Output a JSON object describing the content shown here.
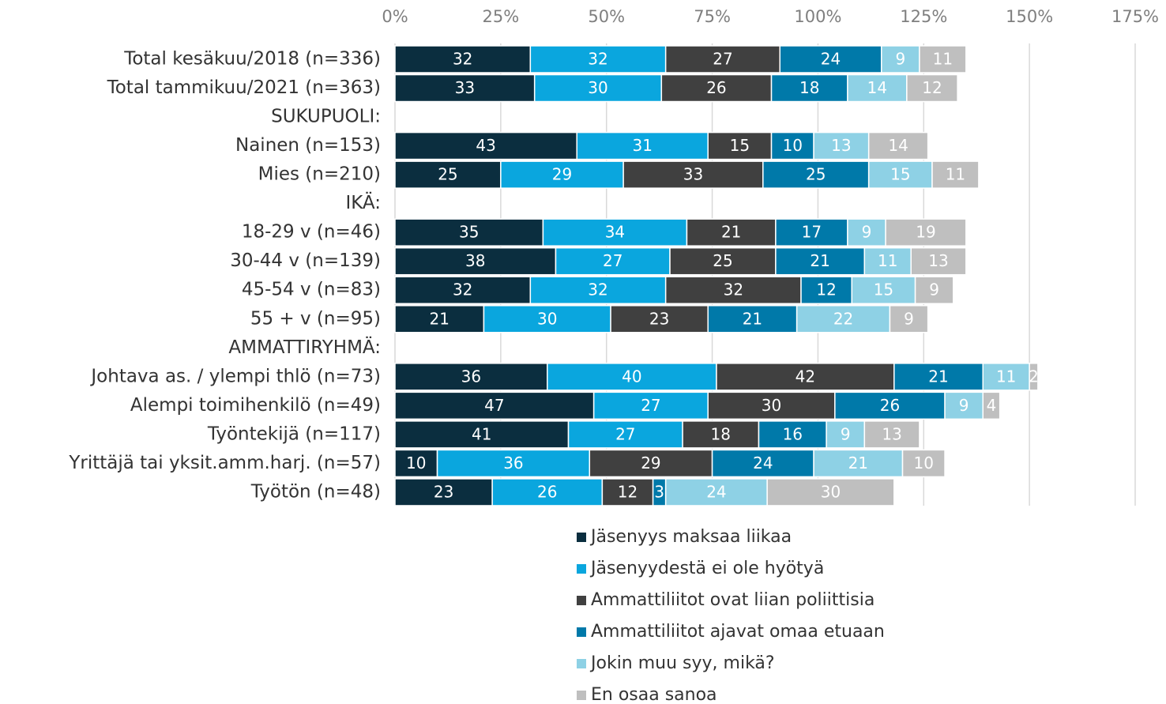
{
  "chart_data": {
    "type": "stacked-barh",
    "categories": [
      "Total kesäkuu/2018 (n=336)",
      "Total tammikuu/2021 (n=363)",
      "SUKUPUOLI:",
      "Nainen (n=153)",
      "Mies (n=210)",
      "IKÄ:",
      "18-29 v (n=46)",
      "30-44 v (n=139)",
      "45-54 v (n=83)",
      "55 + v (n=95)",
      "AMMATTIRYHMÄ:",
      "Johtava as. / ylempi thlö (n=73)",
      "Alempi toimihenkilö (n=49)",
      "Työntekijä (n=117)",
      "Yrittäjä tai yksit.amm.harj. (n=57)",
      "Työtön (n=48)"
    ],
    "series": [
      {
        "name": "Jäsenyys maksaa liikaa",
        "color": "#0b2e3f",
        "values": [
          32,
          33,
          null,
          43,
          25,
          null,
          35,
          38,
          32,
          21,
          null,
          36,
          47,
          41,
          10,
          23
        ]
      },
      {
        "name": "Jäsenyydestä ei ole hyötyä",
        "color": "#0aa6de",
        "values": [
          32,
          30,
          null,
          31,
          29,
          null,
          34,
          27,
          32,
          30,
          null,
          40,
          27,
          27,
          36,
          26
        ]
      },
      {
        "name": "Ammattiliitot ovat liian poliittisia",
        "color": "#404040",
        "values": [
          27,
          26,
          null,
          15,
          33,
          null,
          21,
          25,
          32,
          23,
          null,
          42,
          30,
          18,
          29,
          12
        ]
      },
      {
        "name": "Ammattiliitot ajavat omaa etuaan",
        "color": "#0079a9",
        "values": [
          24,
          18,
          null,
          10,
          25,
          null,
          17,
          21,
          12,
          21,
          null,
          21,
          26,
          16,
          24,
          3
        ]
      },
      {
        "name": "Jokin muu syy, mikä?",
        "color": "#8ed1e5",
        "values": [
          9,
          14,
          null,
          13,
          15,
          null,
          9,
          11,
          15,
          22,
          null,
          11,
          9,
          9,
          21,
          24
        ]
      },
      {
        "name": "En osaa sanoa",
        "color": "#bfbfbf",
        "values": [
          11,
          12,
          null,
          14,
          11,
          null,
          19,
          13,
          9,
          9,
          null,
          2,
          4,
          13,
          10,
          30
        ]
      }
    ],
    "xlim": [
      0,
      175
    ],
    "xticks": [
      {
        "value": 0,
        "label": "0%"
      },
      {
        "value": 25,
        "label": "25%"
      },
      {
        "value": 50,
        "label": "50%"
      },
      {
        "value": 75,
        "label": "75%"
      },
      {
        "value": 100,
        "label": "100%"
      },
      {
        "value": 125,
        "label": "125%"
      },
      {
        "value": 150,
        "label": "150%"
      },
      {
        "value": 175,
        "label": "175%"
      }
    ],
    "grid": true,
    "legend": "bottom"
  }
}
